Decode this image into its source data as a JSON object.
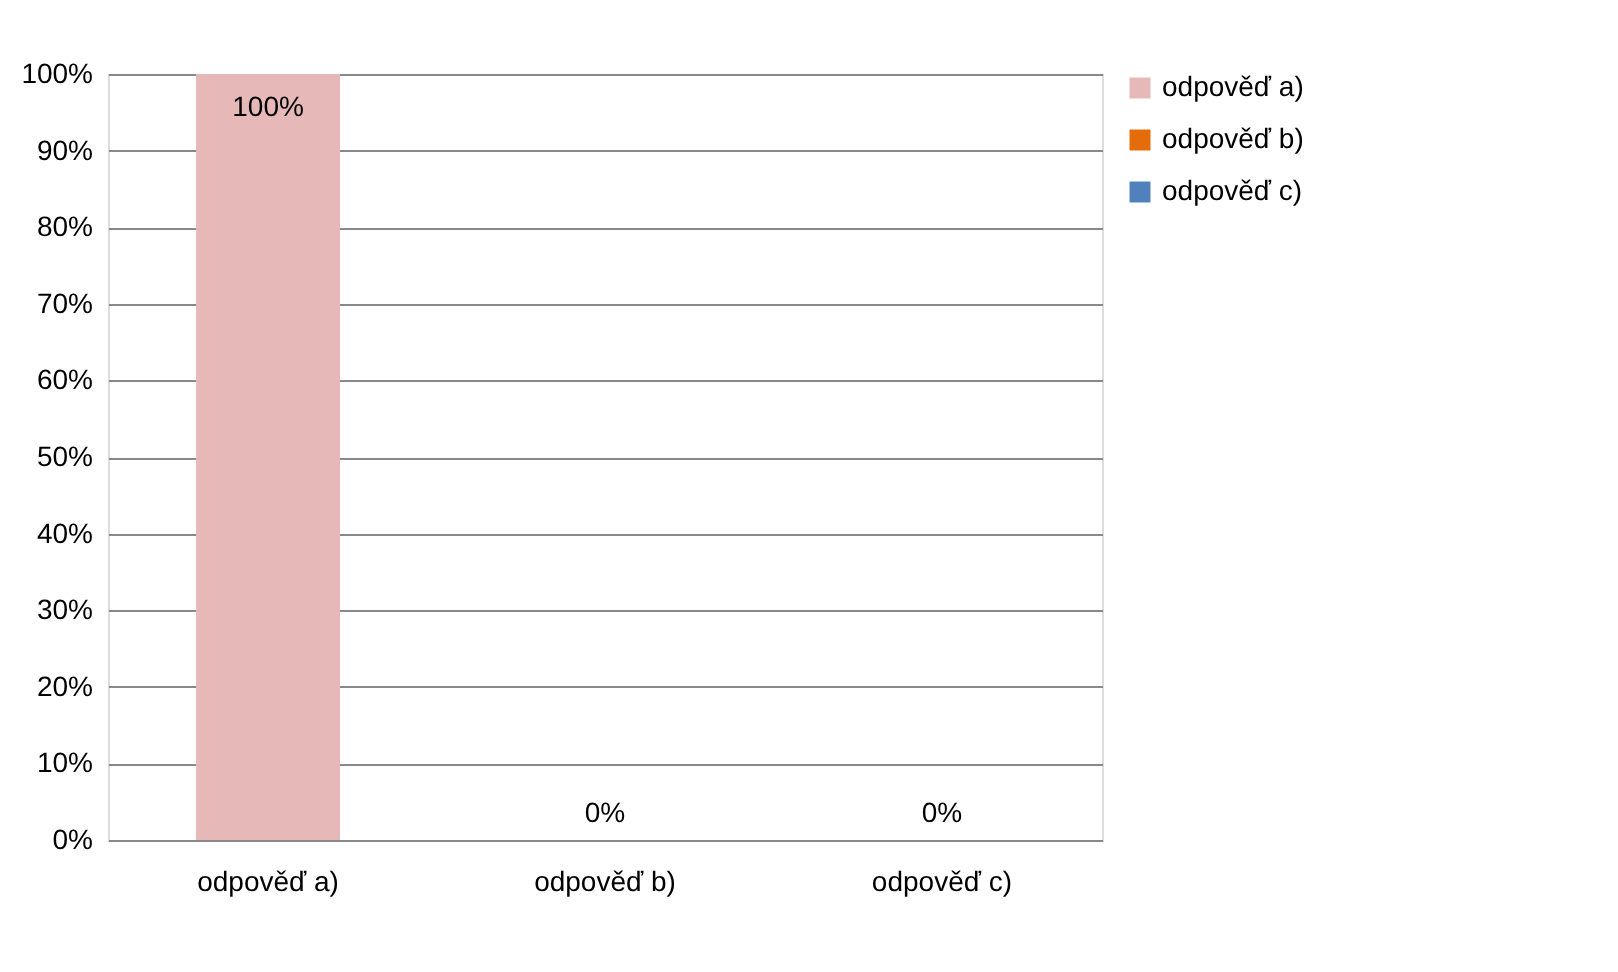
{
  "chart_data": {
    "type": "bar",
    "categories": [
      "odpověď a)",
      "odpověď b)",
      "odpověď c)"
    ],
    "series": [
      {
        "name": "odpověď a)",
        "color": "#e6b9b8",
        "values": [
          100,
          null,
          null
        ],
        "value_labels": [
          "100%",
          null,
          null
        ]
      },
      {
        "name": "odpověď b)",
        "color": "#e46c0a",
        "values": [
          null,
          0,
          null
        ],
        "value_labels": [
          null,
          "0%",
          null
        ]
      },
      {
        "name": "odpověď c)",
        "color": "#4f81bd",
        "values": [
          null,
          null,
          0
        ],
        "value_labels": [
          null,
          null,
          "0%"
        ]
      }
    ],
    "ylim": [
      0,
      100
    ],
    "yticks": [
      {
        "value": 0,
        "label": "0%"
      },
      {
        "value": 10,
        "label": "10%"
      },
      {
        "value": 20,
        "label": "20%"
      },
      {
        "value": 30,
        "label": "30%"
      },
      {
        "value": 40,
        "label": "40%"
      },
      {
        "value": 50,
        "label": "50%"
      },
      {
        "value": 60,
        "label": "60%"
      },
      {
        "value": 70,
        "label": "70%"
      },
      {
        "value": 80,
        "label": "80%"
      },
      {
        "value": 90,
        "label": "90%"
      },
      {
        "value": 100,
        "label": "100%"
      }
    ],
    "grid": "y",
    "legend": "right"
  }
}
